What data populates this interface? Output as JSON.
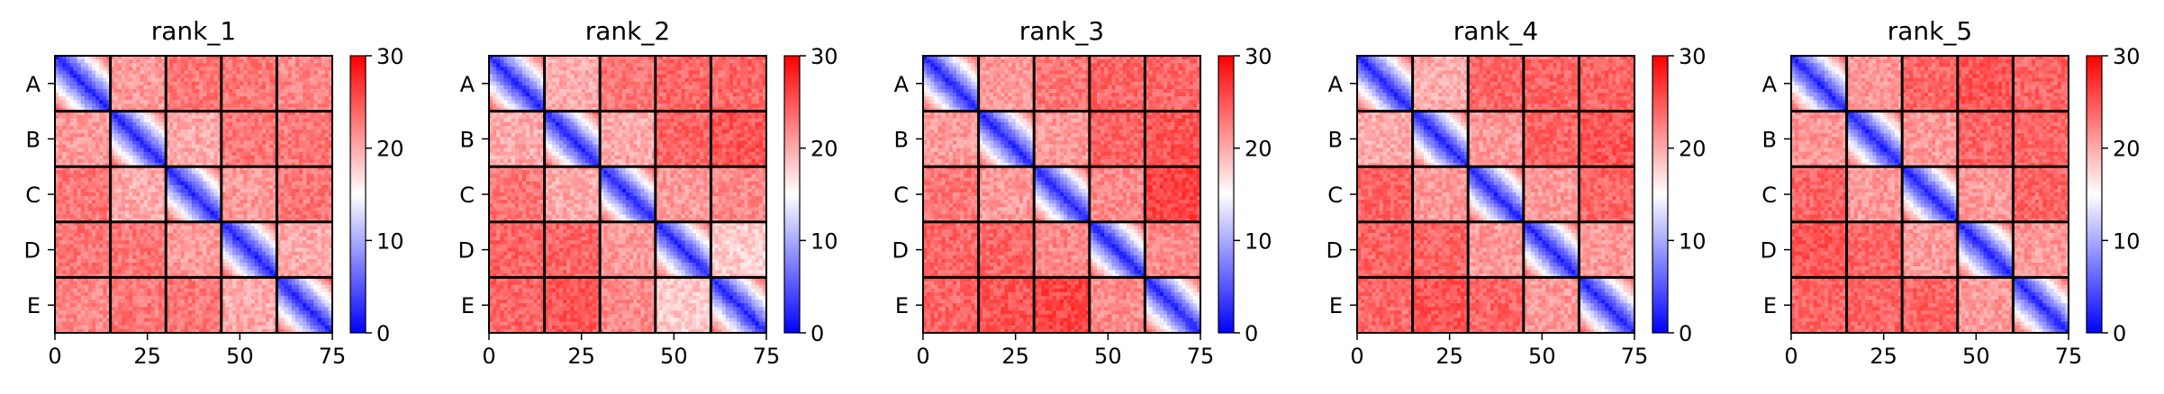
{
  "chart_data": [
    {
      "type": "heatmap",
      "title": "rank_1",
      "rows": [
        "A",
        "B",
        "C",
        "D",
        "E"
      ],
      "xticks": [
        "0",
        "25",
        "50",
        "75"
      ],
      "xlim": [
        0,
        75
      ],
      "grid_size": 75,
      "block_size": 15,
      "block_means": [
        [
          4,
          21,
          23,
          23,
          22
        ],
        [
          21,
          4,
          20,
          23,
          23
        ],
        [
          23,
          20,
          4,
          21,
          23
        ],
        [
          23,
          23,
          21,
          4,
          20
        ],
        [
          22,
          23,
          23,
          20,
          4
        ]
      ],
      "colorbar": {
        "min": 0,
        "max": 30,
        "ticks": [
          "0",
          "10",
          "20",
          "30"
        ]
      }
    },
    {
      "type": "heatmap",
      "title": "rank_2",
      "rows": [
        "A",
        "B",
        "C",
        "D",
        "E"
      ],
      "xticks": [
        "0",
        "25",
        "50",
        "75"
      ],
      "xlim": [
        0,
        75
      ],
      "grid_size": 75,
      "block_size": 15,
      "block_means": [
        [
          4,
          20,
          23,
          24,
          24
        ],
        [
          20,
          4,
          20,
          24,
          25
        ],
        [
          23,
          20,
          4,
          21,
          22
        ],
        [
          24,
          24,
          21,
          4,
          18
        ],
        [
          24,
          25,
          22,
          18,
          4
        ]
      ],
      "colorbar": {
        "min": 0,
        "max": 30,
        "ticks": [
          "0",
          "10",
          "20",
          "30"
        ]
      }
    },
    {
      "type": "heatmap",
      "title": "rank_3",
      "rows": [
        "A",
        "B",
        "C",
        "D",
        "E"
      ],
      "xticks": [
        "0",
        "25",
        "50",
        "75"
      ],
      "xlim": [
        0,
        75
      ],
      "grid_size": 75,
      "block_size": 15,
      "block_means": [
        [
          4,
          21,
          23,
          24,
          24
        ],
        [
          21,
          4,
          21,
          24,
          25
        ],
        [
          23,
          21,
          4,
          22,
          26
        ],
        [
          24,
          24,
          22,
          4,
          22
        ],
        [
          24,
          25,
          26,
          22,
          4
        ]
      ],
      "colorbar": {
        "min": 0,
        "max": 30,
        "ticks": [
          "0",
          "10",
          "20",
          "30"
        ]
      }
    },
    {
      "type": "heatmap",
      "title": "rank_4",
      "rows": [
        "A",
        "B",
        "C",
        "D",
        "E"
      ],
      "xticks": [
        "0",
        "25",
        "50",
        "75"
      ],
      "xlim": [
        0,
        75
      ],
      "grid_size": 75,
      "block_size": 15,
      "block_means": [
        [
          4,
          20,
          24,
          24,
          24
        ],
        [
          20,
          4,
          21,
          24,
          25
        ],
        [
          24,
          21,
          4,
          21,
          24
        ],
        [
          24,
          24,
          21,
          4,
          21
        ],
        [
          24,
          25,
          24,
          21,
          4
        ]
      ],
      "colorbar": {
        "min": 0,
        "max": 30,
        "ticks": [
          "0",
          "10",
          "20",
          "30"
        ]
      }
    },
    {
      "type": "heatmap",
      "title": "rank_5",
      "rows": [
        "A",
        "B",
        "C",
        "D",
        "E"
      ],
      "xticks": [
        "0",
        "25",
        "50",
        "75"
      ],
      "xlim": [
        0,
        75
      ],
      "grid_size": 75,
      "block_size": 15,
      "block_means": [
        [
          4,
          21,
          24,
          25,
          24
        ],
        [
          21,
          4,
          21,
          24,
          24
        ],
        [
          24,
          21,
          4,
          21,
          24
        ],
        [
          25,
          24,
          21,
          4,
          21
        ],
        [
          24,
          24,
          24,
          21,
          4
        ]
      ],
      "colorbar": {
        "min": 0,
        "max": 30,
        "ticks": [
          "0",
          "10",
          "20",
          "30"
        ]
      }
    }
  ]
}
